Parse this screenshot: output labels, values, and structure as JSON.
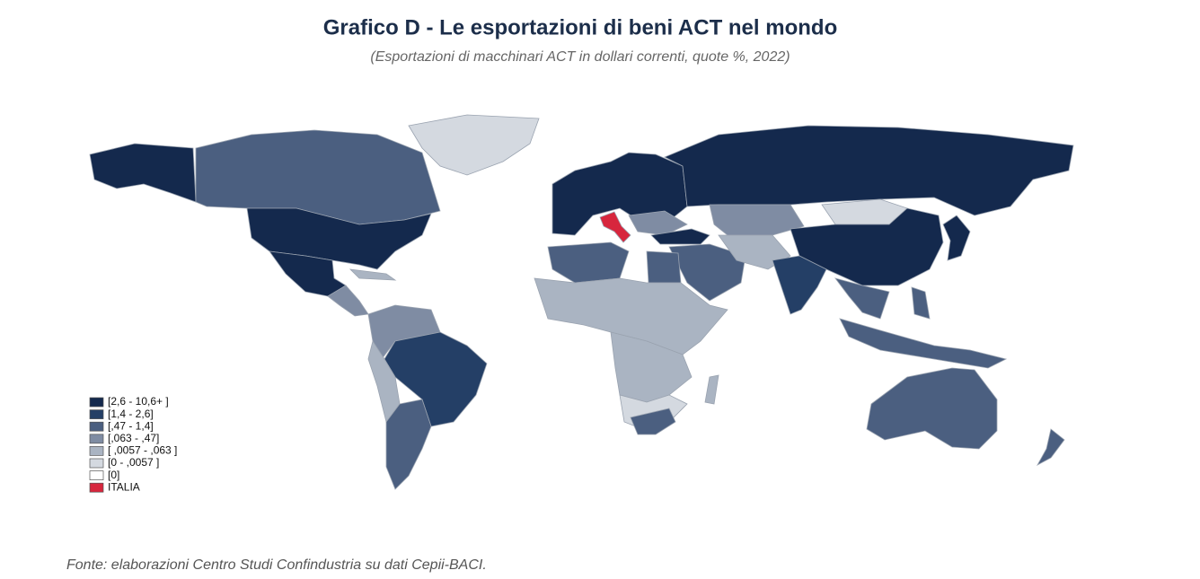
{
  "header": {
    "title": "Grafico D - Le esportazioni di beni ACT nel mondo",
    "subtitle": "(Esportazioni di macchinari ACT in dollari correnti, quote %, 2022)"
  },
  "legend": {
    "items": [
      {
        "label": "[2,6 - 10,6+ ]",
        "color": "#14294d"
      },
      {
        "label": "[1,4 - 2,6]",
        "color": "#243f66"
      },
      {
        "label": "[,47 - 1,4]",
        "color": "#4b5f80"
      },
      {
        "label": "[,063 - ,47]",
        "color": "#7f8ca3"
      },
      {
        "label": "[ ,0057 - ,063 ]",
        "color": "#aab4c2"
      },
      {
        "label": "[0 - ,0057  ]",
        "color": "#d4d9e0"
      },
      {
        "label": "[0]",
        "color": "#ffffff"
      },
      {
        "label": "ITALIA",
        "color": "#d7263d"
      }
    ]
  },
  "source": "Fonte: elaborazioni Centro Studi Confindustria su dati Cepii-BACI."
}
